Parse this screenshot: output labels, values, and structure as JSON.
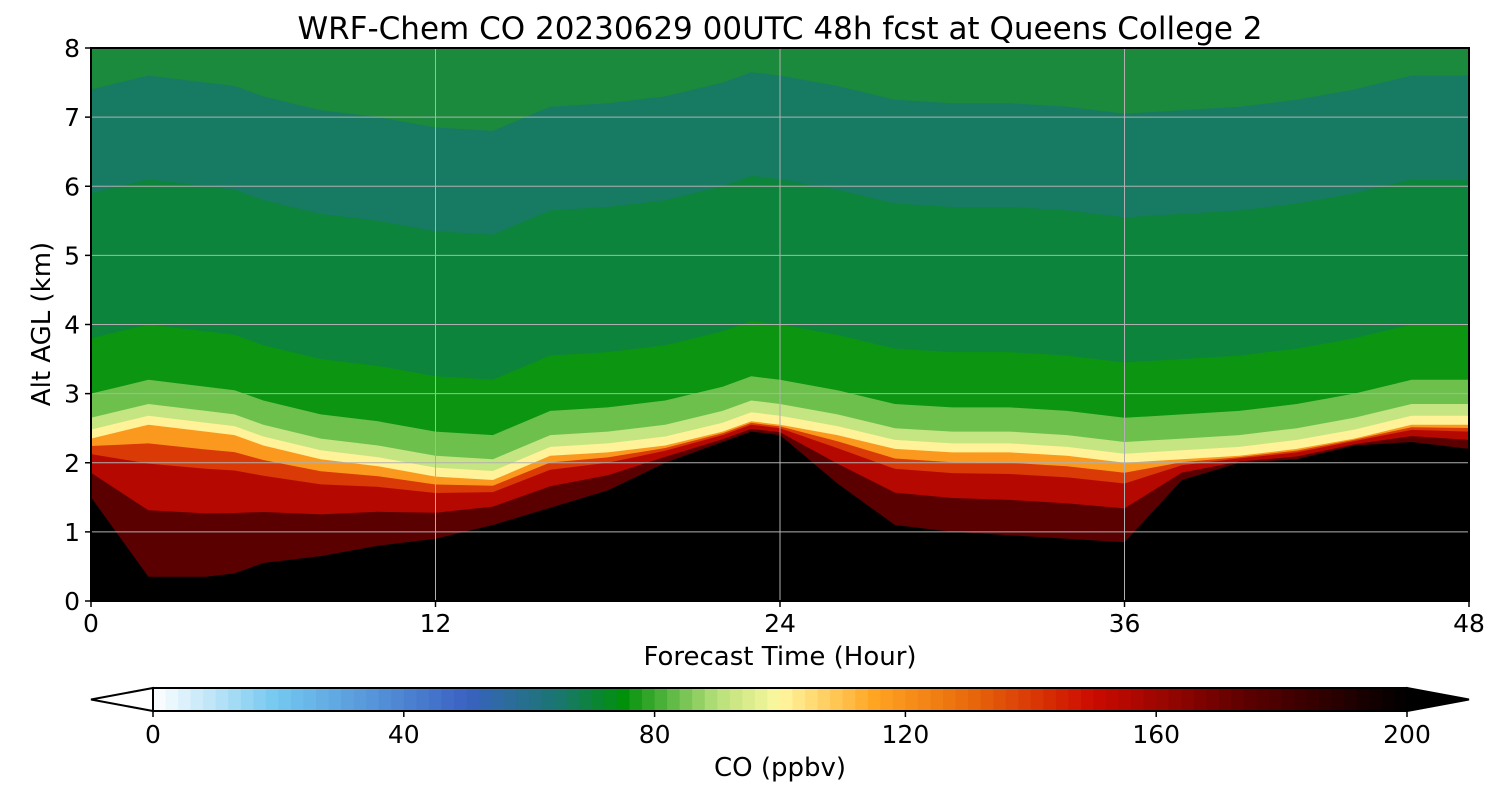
{
  "chart_data": {
    "type": "heatmap",
    "title": "WRF-Chem CO  20230629 00UTC 48h fcst at Queens College 2",
    "xlabel": "Forecast Time (Hour)",
    "ylabel": "Alt AGL (km)",
    "xlim": [
      0,
      48
    ],
    "ylim": [
      0,
      8
    ],
    "x_ticks": [
      0,
      12,
      24,
      36,
      48
    ],
    "y_ticks": [
      0,
      1,
      2,
      3,
      4,
      5,
      6,
      7,
      8
    ],
    "grid": true,
    "colorbar": {
      "label": "CO  (ppbv)",
      "min": 0,
      "max": 200,
      "ticks": [
        0,
        40,
        80,
        120,
        160,
        200
      ],
      "extend": "both",
      "stops": [
        {
          "v": 0,
          "color": "#ffffff"
        },
        {
          "v": 20,
          "color": "#72c7f0"
        },
        {
          "v": 50,
          "color": "#3a62c2"
        },
        {
          "v": 65,
          "color": "#19776d"
        },
        {
          "v": 75,
          "color": "#00900a"
        },
        {
          "v": 90,
          "color": "#b7e07a"
        },
        {
          "v": 100,
          "color": "#fff8a0"
        },
        {
          "v": 115,
          "color": "#ffa522"
        },
        {
          "v": 130,
          "color": "#e86a0c"
        },
        {
          "v": 150,
          "color": "#cc0a00"
        },
        {
          "v": 175,
          "color": "#5a0000"
        },
        {
          "v": 200,
          "color": "#000000"
        }
      ]
    },
    "x_hours": [
      0,
      2,
      4,
      5,
      6,
      8,
      10,
      12,
      14,
      16,
      18,
      20,
      22,
      23,
      24,
      26,
      28,
      30,
      32,
      34,
      36,
      38,
      40,
      42,
      44,
      46,
      48
    ],
    "boundary_layer_top_km": [
      2.4,
      2.6,
      2.5,
      2.45,
      2.3,
      2.1,
      2.0,
      1.85,
      1.8,
      2.15,
      2.2,
      2.3,
      2.5,
      2.65,
      2.6,
      2.45,
      2.25,
      2.2,
      2.2,
      2.15,
      2.05,
      2.1,
      2.15,
      2.25,
      2.4,
      2.6,
      2.6
    ],
    "black_core_top_km": [
      1.5,
      0.35,
      0.35,
      0.4,
      0.55,
      0.65,
      0.8,
      0.9,
      1.1,
      1.35,
      1.6,
      2.0,
      2.3,
      2.45,
      2.4,
      1.7,
      1.1,
      1.0,
      0.95,
      0.9,
      0.85,
      1.75,
      2.0,
      2.05,
      2.25,
      2.3,
      2.2
    ]
  }
}
